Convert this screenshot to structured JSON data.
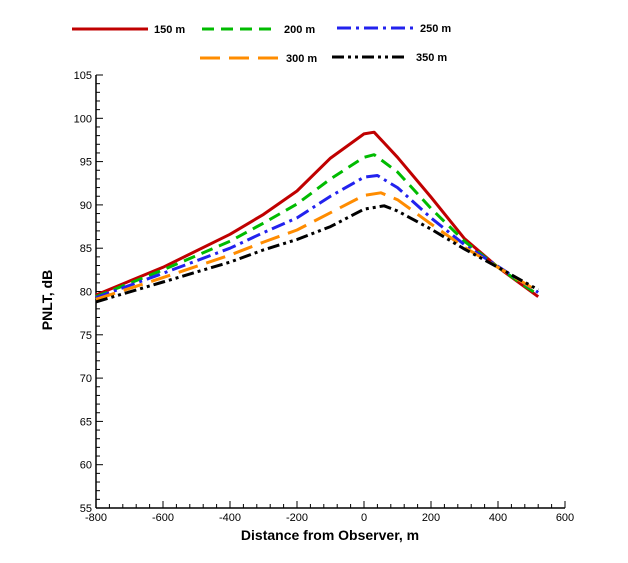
{
  "chart_data": {
    "type": "line",
    "title": "",
    "xlabel": "Distance from Observer, m",
    "ylabel": "PNLT, dB",
    "xlim": [
      -800,
      600
    ],
    "ylim": [
      55,
      105
    ],
    "xticks": [
      -800,
      -600,
      -400,
      -200,
      0,
      200,
      400,
      600
    ],
    "xtick_labels": [
      "-800",
      "-600",
      "-400",
      "-200",
      "0",
      "200",
      "400",
      "600"
    ],
    "yticks": [
      55,
      60,
      65,
      70,
      75,
      80,
      85,
      90,
      95,
      100,
      105
    ],
    "ytick_labels": [
      "55",
      "60",
      "65",
      "70",
      "75",
      "80",
      "85",
      "90",
      "95",
      "100",
      "105"
    ],
    "grid": false,
    "legend_position": "top",
    "series": [
      {
        "name": "150 m",
        "color": "#c00000",
        "dash": "solid",
        "x": [
          -800,
          -600,
          -400,
          -300,
          -200,
          -100,
          0,
          30,
          100,
          200,
          300,
          400,
          520
        ],
        "y": [
          79.6,
          82.8,
          86.6,
          88.9,
          91.6,
          95.4,
          98.2,
          98.4,
          95.5,
          90.9,
          86.1,
          82.8,
          79.4
        ]
      },
      {
        "name": "200 m",
        "color": "#00bb00",
        "dash": "dash",
        "x": [
          -800,
          -600,
          -400,
          -300,
          -200,
          -100,
          0,
          30,
          100,
          200,
          300,
          400,
          520
        ],
        "y": [
          79.4,
          82.5,
          85.8,
          87.9,
          90.1,
          93.0,
          95.5,
          95.8,
          93.8,
          89.6,
          85.8,
          82.8,
          79.6
        ]
      },
      {
        "name": "250 m",
        "color": "#2222ee",
        "dash": "dashdot",
        "x": [
          -800,
          -600,
          -400,
          -300,
          -200,
          -100,
          0,
          40,
          100,
          200,
          300,
          400,
          520
        ],
        "y": [
          79.3,
          82.1,
          85.0,
          86.8,
          88.5,
          91.0,
          93.2,
          93.4,
          92.0,
          88.5,
          85.4,
          82.9,
          79.9
        ]
      },
      {
        "name": "300 m",
        "color": "#ff8c00",
        "dash": "longdash",
        "x": [
          -800,
          -600,
          -400,
          -300,
          -200,
          -100,
          0,
          50,
          100,
          200,
          300,
          400,
          520
        ],
        "y": [
          79.1,
          81.6,
          84.2,
          85.7,
          87.1,
          89.1,
          91.1,
          91.4,
          90.6,
          87.8,
          85.1,
          82.8,
          80.0
        ]
      },
      {
        "name": "350 m",
        "color": "#000000",
        "dash": "dashdotdot",
        "x": [
          -800,
          -600,
          -400,
          -300,
          -200,
          -100,
          0,
          60,
          100,
          200,
          300,
          400,
          520
        ],
        "y": [
          78.8,
          81.1,
          83.4,
          84.8,
          86.0,
          87.5,
          89.5,
          89.9,
          89.3,
          87.2,
          84.9,
          82.8,
          80.2
        ]
      }
    ]
  }
}
